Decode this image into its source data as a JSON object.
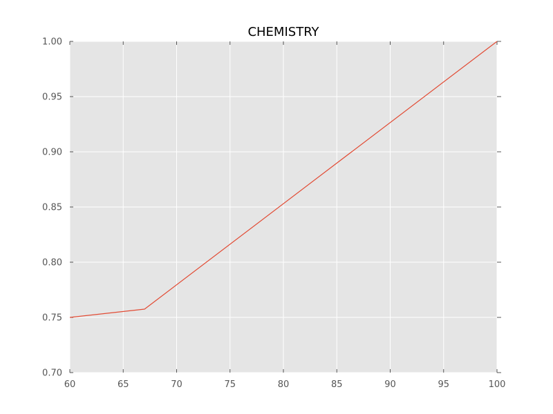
{
  "chart_data": {
    "type": "line",
    "title": "CHEMISTRY",
    "xlabel": "",
    "ylabel": "",
    "xlim": [
      60,
      100
    ],
    "ylim": [
      0.7,
      1.0
    ],
    "x_ticks": [
      "60",
      "65",
      "70",
      "75",
      "80",
      "85",
      "90",
      "95",
      "100"
    ],
    "y_ticks": [
      "0.70",
      "0.75",
      "0.80",
      "0.85",
      "0.90",
      "0.95",
      "1.00"
    ],
    "grid": true,
    "series": [
      {
        "color": "#e24a33",
        "x": [
          60,
          67,
          100
        ],
        "y": [
          0.75,
          0.7575,
          1.0
        ]
      }
    ],
    "colors": {
      "plot_background": "#e5e5e5",
      "grid": "#ffffff",
      "tick_marks": "#555555"
    }
  }
}
